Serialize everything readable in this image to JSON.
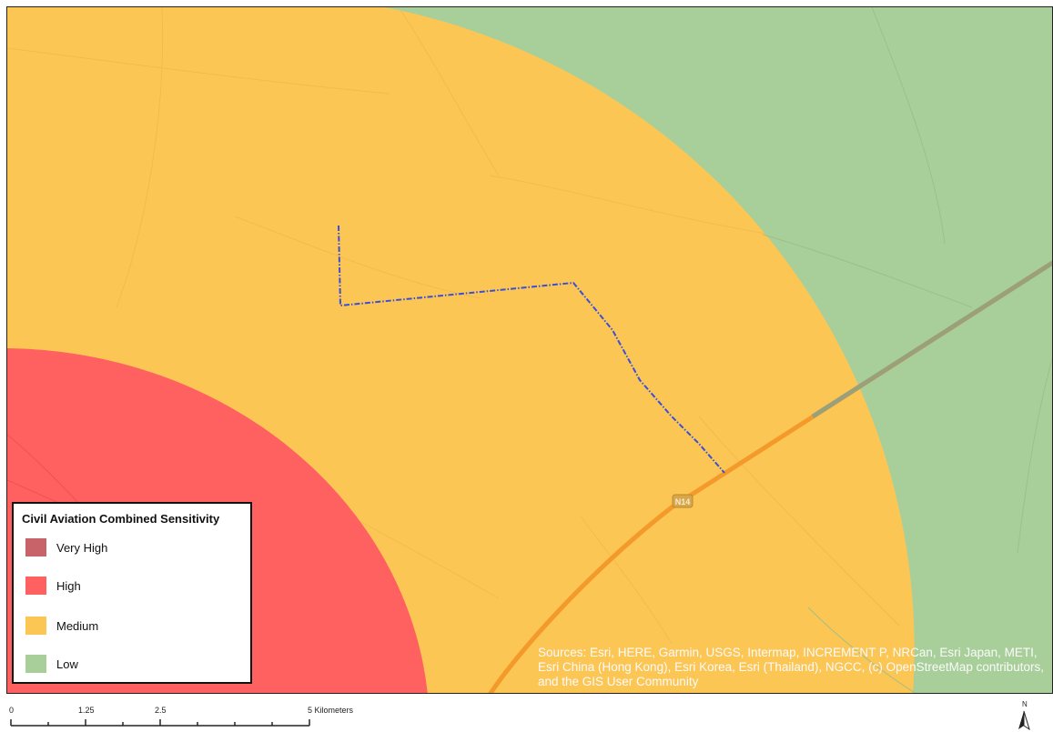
{
  "legend": {
    "title": "Civil Aviation Combined Sensitivity",
    "items": [
      {
        "label": "Very High",
        "color": "#c9636a"
      },
      {
        "label": "High",
        "color": "#ff6060"
      },
      {
        "label": "Medium",
        "color": "#fcc655"
      },
      {
        "label": "Low",
        "color": "#a8cf9a"
      }
    ]
  },
  "map": {
    "road_shield": "N14",
    "colors": {
      "medium": "#fcc655",
      "high": "#ff6060",
      "low": "#a8cf9a",
      "route": "#3b4fd6",
      "road": "#f39a2a"
    }
  },
  "attribution": {
    "text": "Sources: Esri, HERE, Garmin, USGS, Intermap, INCREMENT P, NRCan, Esri Japan, METI, Esri China (Hong Kong), Esri Korea, Esri (Thailand), NGCC, (c) OpenStreetMap contributors, and the GIS User Community"
  },
  "scale_bar": {
    "labels": [
      "0",
      "1.25",
      "2.5",
      "5 Kilometers"
    ]
  },
  "north_arrow": {
    "label": "N"
  }
}
